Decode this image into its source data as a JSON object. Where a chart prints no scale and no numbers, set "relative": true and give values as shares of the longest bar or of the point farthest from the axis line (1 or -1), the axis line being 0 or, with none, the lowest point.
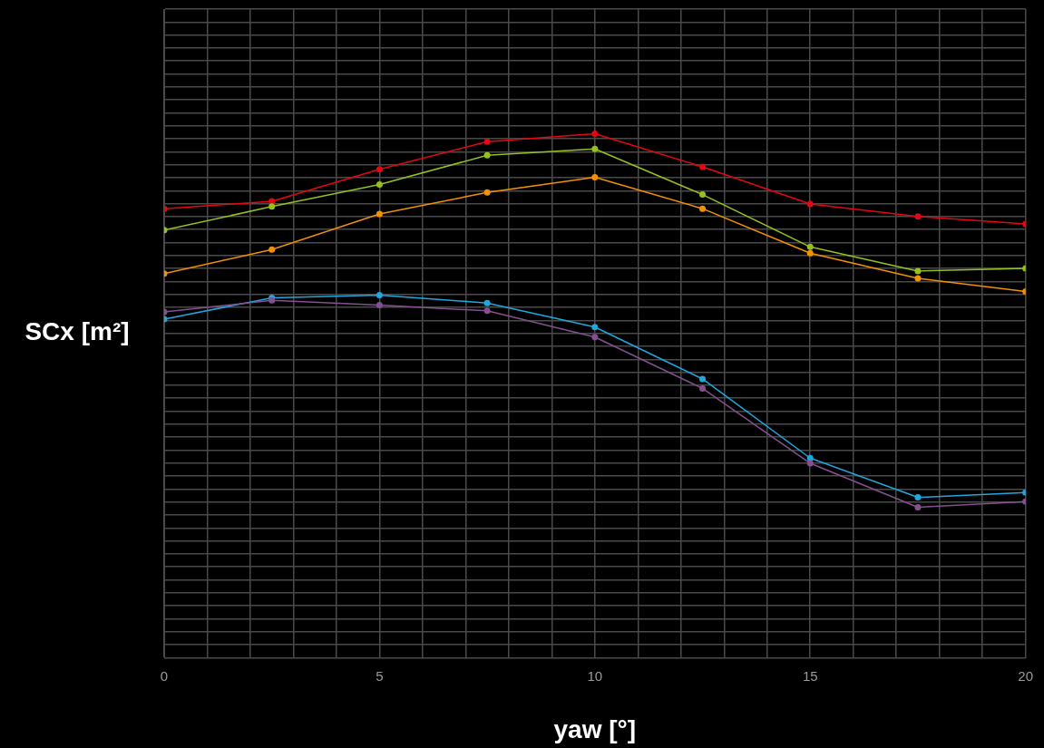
{
  "chart_data": {
    "type": "line",
    "xlabel": "yaw [°]",
    "ylabel": "SCx [m²]",
    "relative": true,
    "grid": true,
    "marker": "circle",
    "line_style": "solid",
    "x": [
      0,
      2.5,
      5,
      7.5,
      10,
      12.5,
      15,
      17.5,
      20
    ],
    "xlim": [
      0,
      20
    ],
    "xticks": [
      0,
      {
        "value": 1,
        "label": null
      },
      {
        "value": 2,
        "label": null
      },
      {
        "value": 3,
        "label": null
      },
      {
        "value": 4,
        "label": null
      },
      5,
      {
        "value": 6,
        "label": null
      },
      {
        "value": 7,
        "label": null
      },
      {
        "value": 8,
        "label": null
      },
      {
        "value": 9,
        "label": null
      },
      10,
      {
        "value": 11,
        "label": null
      },
      {
        "value": 12,
        "label": null
      },
      {
        "value": 13,
        "label": null
      },
      {
        "value": 14,
        "label": null
      },
      15,
      {
        "value": 16,
        "label": null
      },
      {
        "value": 17,
        "label": null
      },
      {
        "value": 18,
        "label": null
      },
      {
        "value": 19,
        "label": null
      },
      20
    ],
    "series": [
      {
        "color": "#e30613",
        "values": [
          0.857,
          0.871,
          0.932,
          0.985,
          1,
          0.937,
          0.866,
          0.842,
          0.828
        ]
      },
      {
        "color": "#95c11f",
        "values": [
          0.816,
          0.861,
          0.903,
          0.959,
          0.971,
          0.884,
          0.784,
          0.738,
          0.743
        ]
      },
      {
        "color": "#f39200",
        "values": [
          0.733,
          0.779,
          0.847,
          0.888,
          0.917,
          0.857,
          0.772,
          0.724,
          0.699
        ]
      },
      {
        "color": "#1fa8e0",
        "values": [
          0.646,
          0.687,
          0.692,
          0.677,
          0.631,
          0.532,
          0.381,
          0.306,
          0.315
        ]
      },
      {
        "color": "#84508f",
        "values": [
          0.66,
          0.682,
          0.673,
          0.662,
          0.612,
          0.514,
          0.371,
          0.287,
          0.298
        ]
      }
    ]
  }
}
